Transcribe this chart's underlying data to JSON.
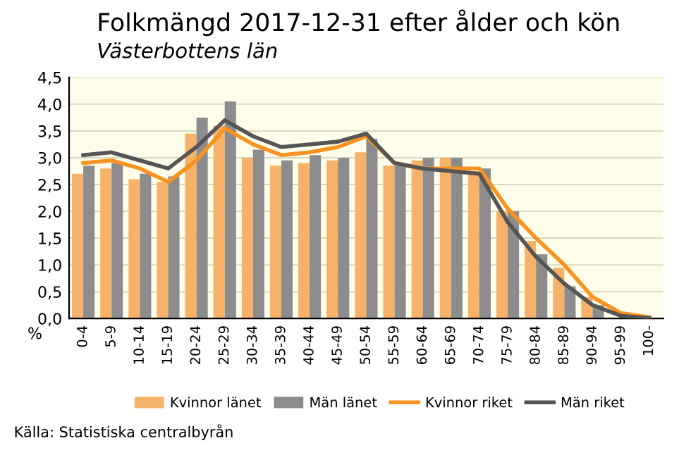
{
  "chart_data": {
    "type": "bar",
    "title": "Folkmängd 2017-12-31 efter ålder och kön",
    "subtitle": "Västerbottens län",
    "ylabel": "%",
    "categories": [
      "0-4",
      "5-9",
      "10-14",
      "15-19",
      "20-24",
      "25-29",
      "30-34",
      "35-39",
      "40-44",
      "45-49",
      "50-54",
      "55-59",
      "60-64",
      "65-69",
      "70-74",
      "75-79",
      "80-84",
      "85-89",
      "90-94",
      "95-99",
      "100-"
    ],
    "series": [
      {
        "name": "Kvinnor länet",
        "color": "#f7b26a",
        "values": [
          2.7,
          2.8,
          2.6,
          2.55,
          3.45,
          3.6,
          3.0,
          2.85,
          2.9,
          2.95,
          3.1,
          2.85,
          2.95,
          3.0,
          2.75,
          2.0,
          1.45,
          0.95,
          0.4,
          null,
          0.02
        ]
      },
      {
        "name": "Män länet",
        "color": "#8c8c8c",
        "values": [
          2.85,
          2.9,
          2.7,
          2.65,
          3.75,
          4.05,
          3.15,
          2.95,
          3.05,
          3.0,
          3.35,
          2.85,
          3.0,
          3.0,
          2.8,
          2.0,
          1.2,
          0.6,
          0.25,
          null,
          0.01
        ]
      },
      {
        "name": "Kvinnor riket",
        "type": "line",
        "color": "#f7931e",
        "values": [
          2.9,
          2.95,
          2.8,
          2.55,
          2.95,
          3.55,
          3.25,
          3.05,
          3.1,
          3.2,
          3.4,
          2.9,
          2.8,
          2.8,
          2.8,
          2.05,
          1.5,
          1.0,
          0.4,
          0.1,
          0.02
        ]
      },
      {
        "name": "Män riket",
        "type": "line",
        "color": "#555555",
        "values": [
          3.05,
          3.1,
          2.95,
          2.8,
          3.2,
          3.7,
          3.4,
          3.2,
          3.25,
          3.3,
          3.45,
          2.9,
          2.8,
          2.75,
          2.7,
          1.8,
          1.15,
          0.65,
          0.25,
          0.05,
          0.01
        ]
      }
    ],
    "ylim": [
      0,
      4.5
    ],
    "yticks": [
      {
        "value": 0,
        "label": "0,0"
      },
      {
        "value": 0.5,
        "label": "0,5"
      },
      {
        "value": 1,
        "label": "1,0"
      },
      {
        "value": 1.5,
        "label": "1,5"
      },
      {
        "value": 2,
        "label": "2,0"
      },
      {
        "value": 2.5,
        "label": "2,5"
      },
      {
        "value": 3,
        "label": "3,0"
      },
      {
        "value": 3.5,
        "label": "3,5"
      },
      {
        "value": 4,
        "label": "4,0"
      },
      {
        "value": 4.5,
        "label": "4,5"
      }
    ],
    "grid": "y",
    "legend": "bottom",
    "marker": "none",
    "annotations": [
      "Källa: Statistiska centralbyrån"
    ]
  }
}
